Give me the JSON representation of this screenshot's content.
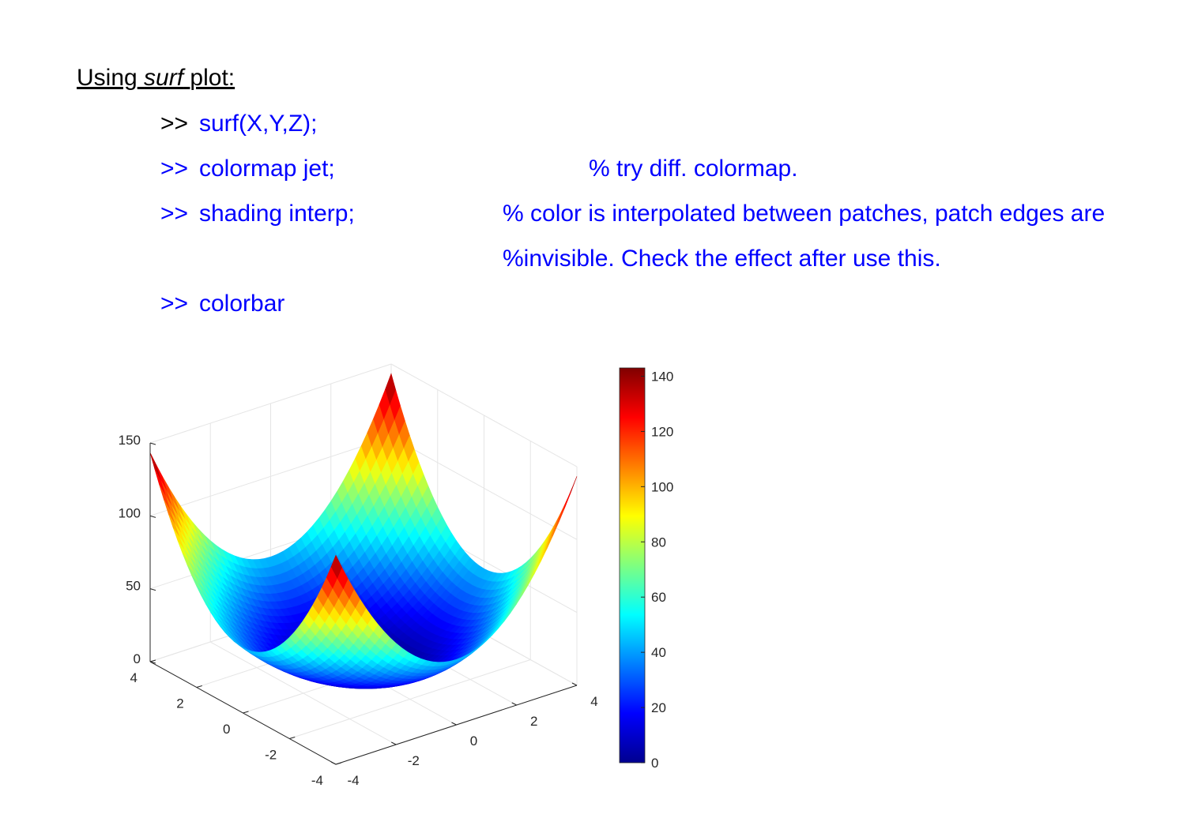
{
  "heading": {
    "prefix": "Using",
    "emph": "surf",
    "suffix": "plot:"
  },
  "lines": [
    {
      "prompt": ">>",
      "command": "surf(X,Y,Z);"
    },
    {
      "prompt": ">>",
      "command": "colormap jet;",
      "comment": "% try diff. colormap."
    },
    {
      "prompt": ">>",
      "command": "shading interp;",
      "comment": "% color is interpolated between patches, patch edges are"
    },
    {
      "comment": "%invisible. Check the effect after use this."
    },
    {
      "prompt": ">>",
      "command": "colorbar"
    }
  ],
  "figure": {
    "type": "surface",
    "xlim": [
      -4,
      4
    ],
    "xticks": [
      -4,
      -2,
      0,
      2,
      4
    ],
    "ylim": [
      -4,
      4
    ],
    "yticks": [
      -4,
      -2,
      0,
      2,
      4
    ],
    "zlim": [
      0,
      150
    ],
    "zticks": [
      0,
      50,
      100,
      150
    ],
    "clim": [
      0,
      143
    ],
    "cticks": [
      0,
      20,
      40,
      60,
      80,
      100,
      120,
      140
    ],
    "colormap": "jet",
    "grid": true
  }
}
